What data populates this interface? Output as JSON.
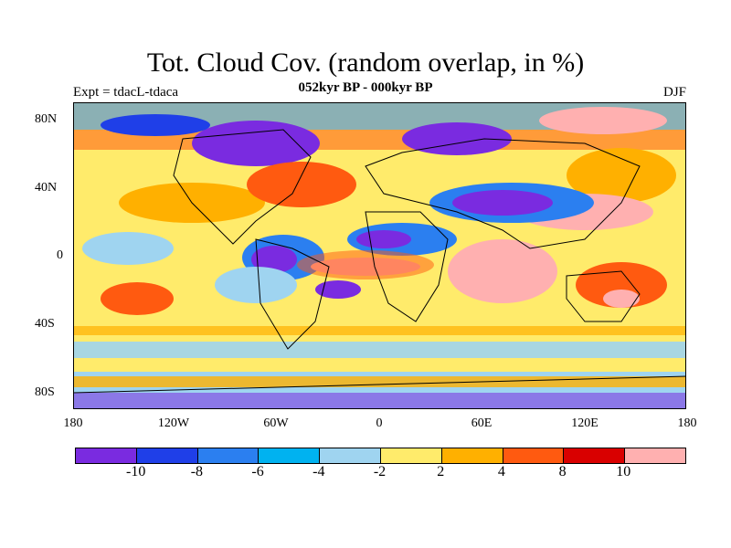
{
  "title": "Tot. Cloud Cov. (random overlap, in %)",
  "subtitle": "052kyr BP - 000kyr BP",
  "left_label": "Expt = tdacL-tdaca",
  "right_label": "DJF",
  "lat_labels": [
    "80N",
    "40N",
    "0",
    "40S",
    "80S"
  ],
  "lon_labels": [
    "180",
    "120W",
    "60W",
    "0",
    "60E",
    "120E",
    "180"
  ],
  "colorbar": {
    "colors": [
      "#7a2be0",
      "#1f3fe8",
      "#2b7ff0",
      "#00b2f0",
      "#9fd4f0",
      "#ffeb6b",
      "#ffb000",
      "#ff5a10",
      "#d90000",
      "#ffb0b0"
    ],
    "labels": [
      "-10",
      "-8",
      "-6",
      "-4",
      "-2",
      "2",
      "4",
      "8",
      "10"
    ]
  }
}
